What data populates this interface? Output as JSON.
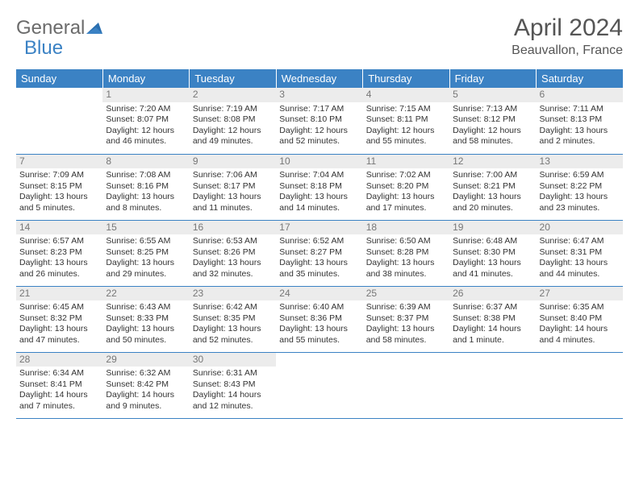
{
  "logo": {
    "word1": "General",
    "word2": "Blue"
  },
  "title": "April 2024",
  "location": "Beauvallon, France",
  "colors": {
    "header_bg": "#3b82c4",
    "header_fg": "#ffffff",
    "daynum_bg": "#ececec",
    "daynum_fg": "#777777",
    "border": "#3b82c4",
    "text": "#333333",
    "logo_gray": "#6b6b6b",
    "logo_blue": "#3b82c4"
  },
  "weekdays": [
    "Sunday",
    "Monday",
    "Tuesday",
    "Wednesday",
    "Thursday",
    "Friday",
    "Saturday"
  ],
  "weeks": [
    [
      null,
      {
        "n": "1",
        "sr": "7:20 AM",
        "ss": "8:07 PM",
        "dl": "12 hours and 46 minutes."
      },
      {
        "n": "2",
        "sr": "7:19 AM",
        "ss": "8:08 PM",
        "dl": "12 hours and 49 minutes."
      },
      {
        "n": "3",
        "sr": "7:17 AM",
        "ss": "8:10 PM",
        "dl": "12 hours and 52 minutes."
      },
      {
        "n": "4",
        "sr": "7:15 AM",
        "ss": "8:11 PM",
        "dl": "12 hours and 55 minutes."
      },
      {
        "n": "5",
        "sr": "7:13 AM",
        "ss": "8:12 PM",
        "dl": "12 hours and 58 minutes."
      },
      {
        "n": "6",
        "sr": "7:11 AM",
        "ss": "8:13 PM",
        "dl": "13 hours and 2 minutes."
      }
    ],
    [
      {
        "n": "7",
        "sr": "7:09 AM",
        "ss": "8:15 PM",
        "dl": "13 hours and 5 minutes."
      },
      {
        "n": "8",
        "sr": "7:08 AM",
        "ss": "8:16 PM",
        "dl": "13 hours and 8 minutes."
      },
      {
        "n": "9",
        "sr": "7:06 AM",
        "ss": "8:17 PM",
        "dl": "13 hours and 11 minutes."
      },
      {
        "n": "10",
        "sr": "7:04 AM",
        "ss": "8:18 PM",
        "dl": "13 hours and 14 minutes."
      },
      {
        "n": "11",
        "sr": "7:02 AM",
        "ss": "8:20 PM",
        "dl": "13 hours and 17 minutes."
      },
      {
        "n": "12",
        "sr": "7:00 AM",
        "ss": "8:21 PM",
        "dl": "13 hours and 20 minutes."
      },
      {
        "n": "13",
        "sr": "6:59 AM",
        "ss": "8:22 PM",
        "dl": "13 hours and 23 minutes."
      }
    ],
    [
      {
        "n": "14",
        "sr": "6:57 AM",
        "ss": "8:23 PM",
        "dl": "13 hours and 26 minutes."
      },
      {
        "n": "15",
        "sr": "6:55 AM",
        "ss": "8:25 PM",
        "dl": "13 hours and 29 minutes."
      },
      {
        "n": "16",
        "sr": "6:53 AM",
        "ss": "8:26 PM",
        "dl": "13 hours and 32 minutes."
      },
      {
        "n": "17",
        "sr": "6:52 AM",
        "ss": "8:27 PM",
        "dl": "13 hours and 35 minutes."
      },
      {
        "n": "18",
        "sr": "6:50 AM",
        "ss": "8:28 PM",
        "dl": "13 hours and 38 minutes."
      },
      {
        "n": "19",
        "sr": "6:48 AM",
        "ss": "8:30 PM",
        "dl": "13 hours and 41 minutes."
      },
      {
        "n": "20",
        "sr": "6:47 AM",
        "ss": "8:31 PM",
        "dl": "13 hours and 44 minutes."
      }
    ],
    [
      {
        "n": "21",
        "sr": "6:45 AM",
        "ss": "8:32 PM",
        "dl": "13 hours and 47 minutes."
      },
      {
        "n": "22",
        "sr": "6:43 AM",
        "ss": "8:33 PM",
        "dl": "13 hours and 50 minutes."
      },
      {
        "n": "23",
        "sr": "6:42 AM",
        "ss": "8:35 PM",
        "dl": "13 hours and 52 minutes."
      },
      {
        "n": "24",
        "sr": "6:40 AM",
        "ss": "8:36 PM",
        "dl": "13 hours and 55 minutes."
      },
      {
        "n": "25",
        "sr": "6:39 AM",
        "ss": "8:37 PM",
        "dl": "13 hours and 58 minutes."
      },
      {
        "n": "26",
        "sr": "6:37 AM",
        "ss": "8:38 PM",
        "dl": "14 hours and 1 minute."
      },
      {
        "n": "27",
        "sr": "6:35 AM",
        "ss": "8:40 PM",
        "dl": "14 hours and 4 minutes."
      }
    ],
    [
      {
        "n": "28",
        "sr": "6:34 AM",
        "ss": "8:41 PM",
        "dl": "14 hours and 7 minutes."
      },
      {
        "n": "29",
        "sr": "6:32 AM",
        "ss": "8:42 PM",
        "dl": "14 hours and 9 minutes."
      },
      {
        "n": "30",
        "sr": "6:31 AM",
        "ss": "8:43 PM",
        "dl": "14 hours and 12 minutes."
      },
      null,
      null,
      null,
      null
    ]
  ],
  "labels": {
    "sunrise": "Sunrise:",
    "sunset": "Sunset:",
    "daylight": "Daylight:"
  }
}
